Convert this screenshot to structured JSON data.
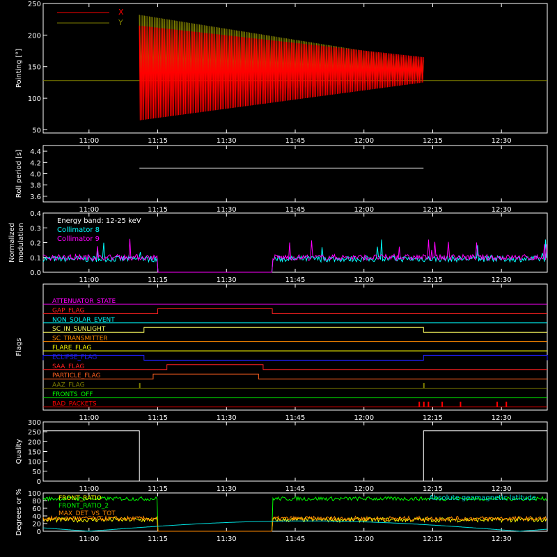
{
  "x_tick_labels": [
    "11:00",
    "11:15",
    "11:30",
    "11:45",
    "12:00",
    "12:15",
    "12:30"
  ],
  "colors": {
    "background": "#000000",
    "axes": "#ffffff",
    "pointing_x": "#ff0000",
    "pointing_y": "#808000",
    "collimator8": "#00ffff",
    "collimator9": "#ff00ff",
    "front_ratio": "#ffff00",
    "front_ratio_2": "#00ff00",
    "max_det": "#ff8800",
    "latitude": "#00e0e0"
  },
  "chart_data": [
    {
      "type": "line",
      "ylabel": "Pointing [°]",
      "ylim": [
        45,
        250
      ],
      "yticks": [
        "50",
        "100",
        "150",
        "200",
        "250"
      ],
      "legend": [
        "X",
        "Y"
      ],
      "series": [
        {
          "name": "X",
          "x_range": [
            "11:11",
            "12:13"
          ],
          "center": 142,
          "envelope_start": [
            65,
            215
          ],
          "envelope_end": [
            125,
            165
          ]
        },
        {
          "name": "Y",
          "x_range": [
            "11:11",
            "12:13"
          ],
          "center": 142,
          "envelope_start": [
            100,
            232
          ],
          "envelope_end": [
            130,
            160
          ]
        }
      ],
      "baseline": 128
    },
    {
      "type": "line",
      "ylabel": "Roll period [s]",
      "ylim": [
        3.5,
        4.5
      ],
      "yticks": [
        "3.6",
        "3.8",
        "4.0",
        "4.2",
        "4.4"
      ],
      "value": 4.1
    },
    {
      "type": "line",
      "ylabel": "Normalized modulation",
      "ylim": [
        0,
        0.4
      ],
      "yticks": [
        "0.0",
        "0.1",
        "0.2",
        "0.3",
        "0.4"
      ],
      "annotations": [
        "Energy band: 12-25 keV",
        "Collimator 8",
        "Collimator 9"
      ],
      "gap": [
        "11:15",
        "11:40"
      ],
      "typical": 0.1
    },
    {
      "type": "line",
      "ylabel": "Flags",
      "flags": [
        {
          "name": "ATTENUATOR_STATE",
          "color": "#ff00ff"
        },
        {
          "name": "GAP_FLAG",
          "color": "#ff2020",
          "on": [
            [
              "11:15",
              "11:40"
            ]
          ]
        },
        {
          "name": "NON_SOLAR_EVENT",
          "color": "#00ffff"
        },
        {
          "name": "SC_IN_SUNLIGHT",
          "color": "#ffff60",
          "on": [
            [
              "11:12",
              "12:13"
            ]
          ]
        },
        {
          "name": "SC_TRANSMITTER",
          "color": "#ff8800"
        },
        {
          "name": "FLARE_FLAG",
          "color": "#ffff00"
        },
        {
          "name": "ECLIPSE_FLAG",
          "color": "#2020ff",
          "on": [
            [
              "10:50",
              "11:12"
            ],
            [
              "12:13",
              "12:40"
            ]
          ]
        },
        {
          "name": "SAA_FLAG",
          "color": "#ff2020",
          "on": [
            [
              "11:17",
              "11:38"
            ]
          ]
        },
        {
          "name": "PARTICLE_FLAG",
          "color": "#ff6020",
          "on": [
            [
              "11:14",
              "11:37"
            ]
          ]
        },
        {
          "name": "AAZ_FLAG",
          "color": "#808000",
          "spikes": [
            "11:11",
            "12:13"
          ]
        },
        {
          "name": "FRONTS_OFF",
          "color": "#00ff00"
        },
        {
          "name": "BAD_PACKETS",
          "color": "#ff0000",
          "spikes": [
            "12:12",
            "12:13",
            "12:14",
            "12:17",
            "12:21",
            "12:29",
            "12:31"
          ]
        }
      ]
    },
    {
      "type": "line",
      "ylabel": "Quality",
      "ylim": [
        0,
        300
      ],
      "yticks": [
        "0",
        "50",
        "100",
        "150",
        "200",
        "250",
        "300"
      ],
      "segments": [
        {
          "x_range": [
            "10:50",
            "11:11"
          ],
          "value": 255
        },
        {
          "x_range": [
            "11:11",
            "12:13"
          ],
          "value": 0
        },
        {
          "x_range": [
            "12:13",
            "12:40"
          ],
          "value": 255
        }
      ]
    },
    {
      "type": "line",
      "ylabel": "Degrees or %",
      "ylim": [
        0,
        100
      ],
      "yticks": [
        "0",
        "20",
        "40",
        "60",
        "80",
        "100"
      ],
      "legend": [
        "FRONT_RATIO",
        "FRONT_RATIO_2",
        "MAX_DET_VS_TOT"
      ],
      "legend_right": "Absolute geomagnetic latitude",
      "gap": [
        "11:15",
        "11:40"
      ],
      "series": [
        {
          "name": "FRONT_RATIO",
          "typical": 30
        },
        {
          "name": "FRONT_RATIO_2",
          "typical": 85
        },
        {
          "name": "MAX_DET_VS_TOT",
          "typical": 33
        },
        {
          "name": "Absolute geomagnetic latitude",
          "peak": 27
        }
      ]
    }
  ]
}
